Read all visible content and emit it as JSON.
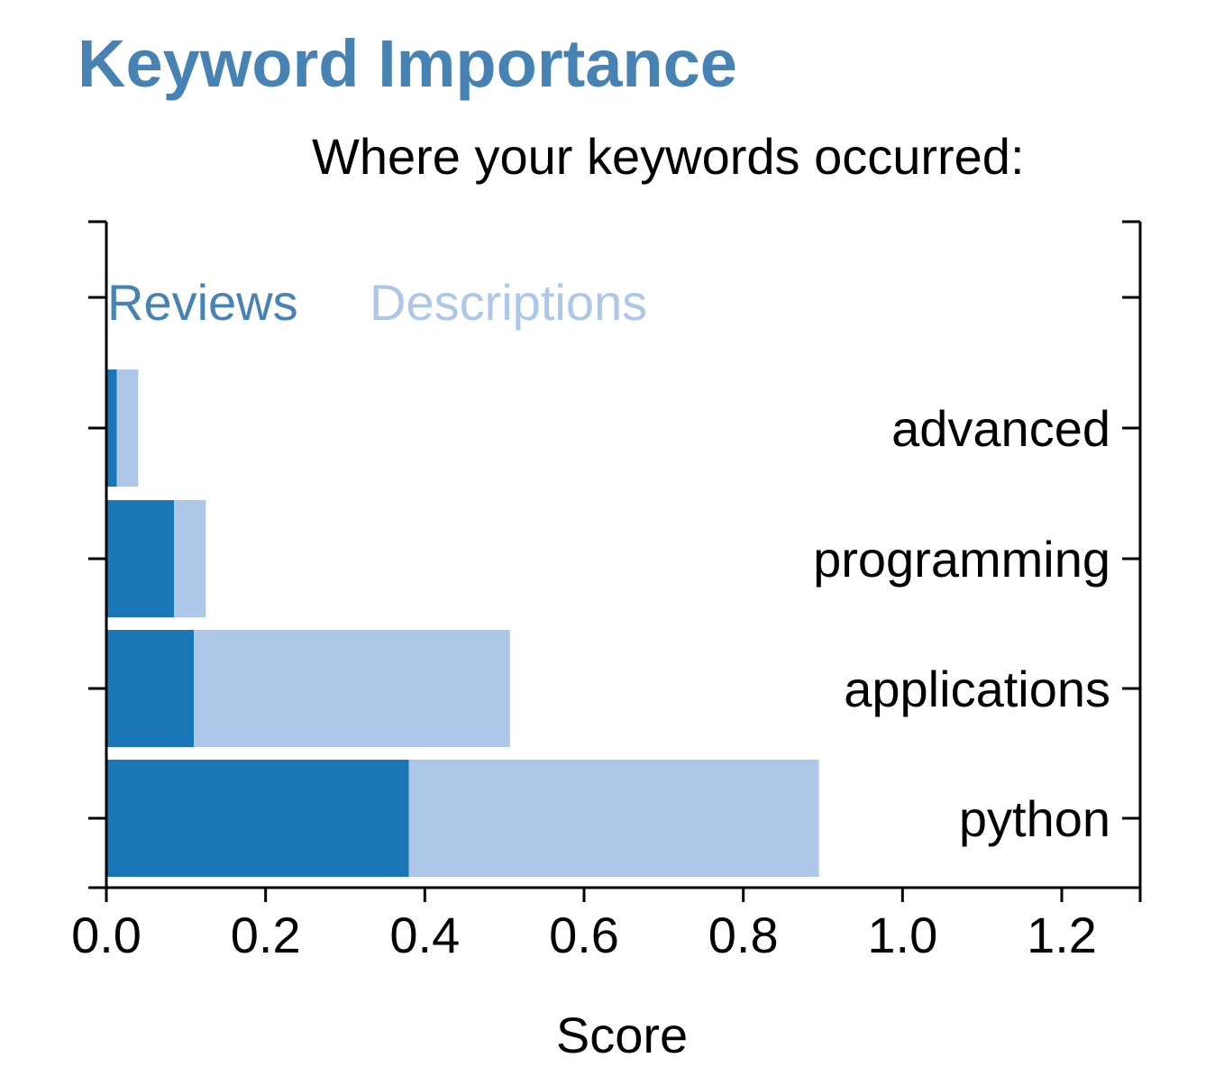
{
  "chart_data": {
    "type": "bar",
    "orientation": "horizontal",
    "stacked": true,
    "title": "Keyword Importance",
    "subtitle": "Where your keywords occurred:",
    "xlabel": "Score",
    "ylabel": "",
    "xlim": [
      0,
      1.3
    ],
    "xticks": [
      "0.0",
      "0.2",
      "0.4",
      "0.6",
      "0.8",
      "1.0",
      "1.2"
    ],
    "categories": [
      "python",
      "applications",
      "programming",
      "advanced"
    ],
    "series": [
      {
        "name": "Reviews",
        "color": "#1a76b6",
        "values": [
          0.38,
          0.11,
          0.085,
          0.013
        ]
      },
      {
        "name": "Descriptions",
        "color": "#aec7e9",
        "values": [
          0.515,
          0.397,
          0.04,
          0.027
        ]
      }
    ],
    "legend_position": "top-left",
    "grid": false
  },
  "colors": {
    "title": "#4682b4",
    "text": "#000000"
  }
}
